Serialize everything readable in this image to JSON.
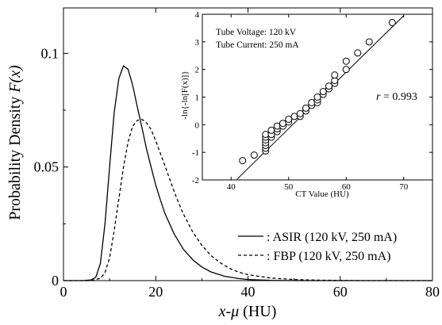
{
  "chart_data": [
    {
      "type": "line",
      "xlabel_var": "x-μ",
      "xlabel_unit": " (HU)",
      "ylabel_text": "Probability Density ",
      "ylabel_var": "F(x)",
      "xlim": [
        0,
        80
      ],
      "ylim": [
        0,
        0.12
      ],
      "xticks": [
        0,
        20,
        40,
        60,
        80
      ],
      "xtick_labels": [
        "0",
        "20",
        "40",
        "60",
        "80"
      ],
      "yticks": [
        0,
        0.05,
        0.1
      ],
      "ytick_labels": [
        "0",
        "0.05",
        "0.1"
      ],
      "grid": false,
      "legend_position": "bottom-right",
      "series": [
        {
          "name": ": ASIR (120 kV, 250 mA)",
          "style": "solid",
          "x": [
            0,
            4,
            6,
            7,
            8,
            9,
            10,
            11,
            12,
            13,
            14,
            15,
            16,
            17,
            18,
            19,
            20,
            21,
            22,
            24,
            26,
            28,
            30,
            32,
            35,
            38,
            40,
            45,
            50,
            55,
            60,
            80
          ],
          "y": [
            0,
            0,
            0.0003,
            0.0015,
            0.0075,
            0.025,
            0.05,
            0.074,
            0.089,
            0.0945,
            0.093,
            0.086,
            0.0765,
            0.0675,
            0.058,
            0.05,
            0.042,
            0.0355,
            0.0295,
            0.0205,
            0.0138,
            0.0092,
            0.006,
            0.0038,
            0.0019,
            0.0009,
            0.0005,
            0.0001,
            0,
            0,
            0,
            0
          ]
        },
        {
          "name": ": FBP (120 kV, 250 mA)",
          "style": "dashed",
          "x": [
            0,
            6,
            8,
            9,
            10,
            11,
            12,
            13,
            14,
            15,
            16,
            17,
            18,
            19,
            20,
            21,
            22,
            23,
            24,
            25,
            26,
            28,
            30,
            32,
            34,
            36,
            38,
            40,
            45,
            50,
            55,
            60,
            65,
            80
          ],
          "y": [
            0,
            0,
            0.001,
            0.0035,
            0.01,
            0.022,
            0.036,
            0.05,
            0.061,
            0.068,
            0.0705,
            0.071,
            0.0695,
            0.0665,
            0.0615,
            0.056,
            0.0505,
            0.0448,
            0.0392,
            0.034,
            0.0293,
            0.0215,
            0.0155,
            0.011,
            0.0078,
            0.0054,
            0.0037,
            0.0026,
            0.0011,
            0.0005,
            0.0002,
            0.0001,
            0,
            0
          ]
        }
      ]
    },
    {
      "type": "scatter",
      "xlabel": "CT Value (HU)",
      "ylabel": "-ln{-ln[F(x)]}",
      "xlim": [
        35,
        75
      ],
      "ylim": [
        -2,
        4
      ],
      "xticks": [
        40,
        50,
        60,
        70
      ],
      "xtick_labels": [
        "40",
        "50",
        "60",
        "70"
      ],
      "yticks": [
        -2,
        -1,
        0,
        1,
        2,
        3,
        4
      ],
      "ytick_labels": [
        "-2",
        "-1",
        "0",
        "1",
        "2",
        "3",
        "4"
      ],
      "grid": false,
      "annotations": [
        "Tube Voltage: 120 kV",
        "Tube Current: 250 mA"
      ],
      "r_label": "r",
      "r_value": "=  0.993",
      "points": {
        "x": [
          42,
          44,
          46,
          46,
          46,
          46,
          46,
          46,
          46,
          47,
          47,
          47,
          48,
          48,
          48,
          49,
          49,
          50,
          50,
          51,
          52,
          52,
          53,
          53,
          54,
          54,
          55,
          55,
          55,
          56,
          56,
          57,
          57,
          58,
          58,
          58,
          60,
          60,
          62,
          64,
          68
        ],
        "y": [
          -1.3,
          -1.1,
          -0.95,
          -0.85,
          -0.75,
          -0.65,
          -0.55,
          -0.45,
          -0.35,
          -0.45,
          -0.35,
          -0.2,
          -0.25,
          -0.15,
          -0.05,
          -0.05,
          0.05,
          0.1,
          0.2,
          0.3,
          0.3,
          0.4,
          0.5,
          0.6,
          0.7,
          0.8,
          0.8,
          0.9,
          1.0,
          1.1,
          1.2,
          1.3,
          1.4,
          1.5,
          1.6,
          1.8,
          2.0,
          2.3,
          2.6,
          3.0,
          3.7
        ]
      },
      "fit_line": {
        "x": [
          41,
          70
        ],
        "y": [
          -1.98,
          3.95
        ]
      }
    }
  ]
}
